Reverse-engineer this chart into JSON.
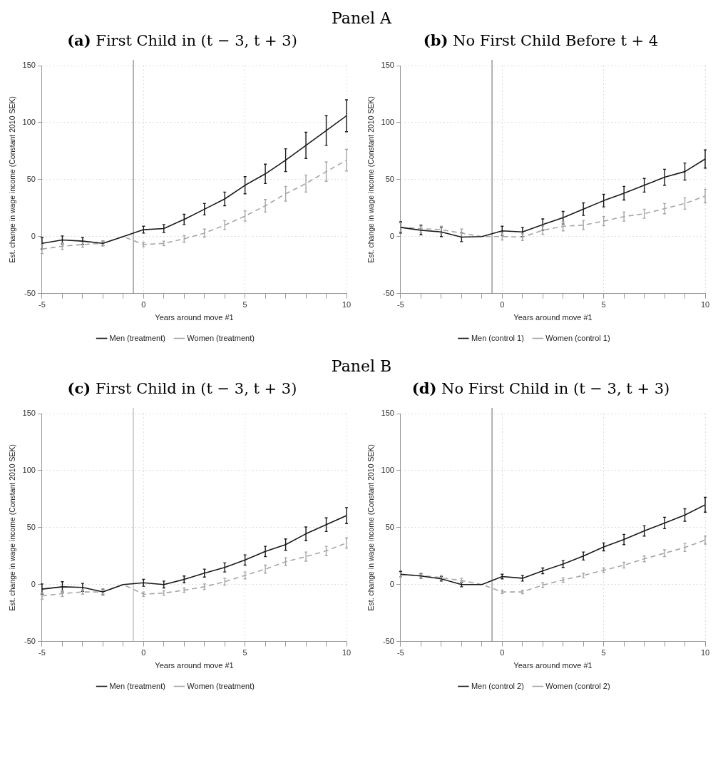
{
  "chart_data": [
    {
      "type": "line",
      "annotations": [
        "Panel A"
      ],
      "title": "(a) First Child in (t − 3, t + 3)",
      "xlabel": "Years around move #1",
      "ylabel": "Est. change in wage income (Constant 2010 SEK)",
      "x": [
        -5,
        -4,
        -3,
        -2,
        -1,
        0,
        1,
        2,
        3,
        4,
        5,
        6,
        7,
        8,
        9,
        10
      ],
      "series": [
        {
          "name": "Men (treatment)",
          "color": "#1a1a1a",
          "line_style": "solid",
          "values": [
            -6,
            -3,
            -4,
            -6,
            0,
            6,
            7,
            15,
            24,
            33,
            45,
            55,
            67,
            80,
            93,
            106
          ],
          "errors": [
            5,
            3.5,
            3,
            2,
            null,
            3,
            3.5,
            4.5,
            5,
            6,
            7.5,
            8.5,
            10,
            11.5,
            13,
            14
          ]
        },
        {
          "name": "Women (treatment)",
          "color": "#a6a6a6",
          "line_style": "dashed",
          "values": [
            -11,
            -8.5,
            -7,
            -6,
            0,
            -7,
            -6,
            -2,
            3,
            10,
            18,
            27,
            37.5,
            46.5,
            57,
            67
          ],
          "errors": [
            4,
            3,
            2.5,
            2,
            null,
            2,
            2,
            3,
            3.5,
            4,
            4.5,
            5.5,
            6.5,
            7.5,
            8.5,
            9.5
          ]
        }
      ],
      "xlim": [
        -5,
        10
      ],
      "xticks": [
        -5,
        {
          "value": -4,
          "label": null
        },
        {
          "value": -3,
          "label": null
        },
        {
          "value": -2,
          "label": null
        },
        {
          "value": -1,
          "label": null
        },
        0,
        {
          "value": 1,
          "label": null
        },
        {
          "value": 2,
          "label": null
        },
        {
          "value": 3,
          "label": null
        },
        {
          "value": 4,
          "label": null
        },
        5,
        {
          "value": 6,
          "label": null
        },
        {
          "value": 7,
          "label": null
        },
        {
          "value": 8,
          "label": null
        },
        {
          "value": 9,
          "label": null
        },
        10
      ],
      "ylim": [
        -50,
        150
      ],
      "yticks": [
        -50,
        0,
        50,
        100,
        150
      ],
      "grid": true,
      "legend": "bottom",
      "ref_lines": [
        {
          "axis": "x",
          "value": -0.5,
          "color": "#808080"
        }
      ]
    },
    {
      "type": "line",
      "title": "(b) No First Child Before t + 4",
      "xlabel": "Years around move #1",
      "ylabel": "Est. change in wage income (Constant 2010 SEK)",
      "x": [
        -5,
        -4,
        -3,
        -2,
        -1,
        0,
        1,
        2,
        3,
        4,
        5,
        6,
        7,
        8,
        9,
        10
      ],
      "series": [
        {
          "name": "Men (control 1)",
          "color": "#1a1a1a",
          "line_style": "solid",
          "values": [
            8,
            5.5,
            4,
            -0.5,
            0,
            5,
            4,
            10.5,
            16.5,
            24,
            31.5,
            38,
            45,
            52,
            57,
            68
          ],
          "errors": [
            5,
            4,
            4,
            4,
            null,
            4,
            4,
            5,
            5.5,
            5.5,
            5.5,
            6,
            6,
            7,
            7.5,
            8
          ]
        },
        {
          "name": "Women (control 1)",
          "color": "#a6a6a6",
          "line_style": "dashed",
          "values": [
            8,
            7,
            6,
            3,
            0,
            0,
            -0.5,
            5.5,
            9,
            10,
            13.5,
            17.5,
            20,
            24.5,
            29,
            35.5
          ],
          "errors": [
            4,
            3.5,
            3,
            3.5,
            null,
            3,
            3,
            3.5,
            4,
            4,
            4,
            4,
            4,
            4.5,
            5,
            6
          ]
        }
      ],
      "xlim": [
        -5,
        10
      ],
      "xticks": [
        -5,
        {
          "value": -4,
          "label": null
        },
        {
          "value": -3,
          "label": null
        },
        {
          "value": -2,
          "label": null
        },
        {
          "value": -1,
          "label": null
        },
        0,
        {
          "value": 1,
          "label": null
        },
        {
          "value": 2,
          "label": null
        },
        {
          "value": 3,
          "label": null
        },
        {
          "value": 4,
          "label": null
        },
        5,
        {
          "value": 6,
          "label": null
        },
        {
          "value": 7,
          "label": null
        },
        {
          "value": 8,
          "label": null
        },
        {
          "value": 9,
          "label": null
        },
        10
      ],
      "ylim": [
        -50,
        150
      ],
      "yticks": [
        -50,
        0,
        50,
        100,
        150
      ],
      "grid": true,
      "legend": "bottom",
      "ref_lines": [
        {
          "axis": "x",
          "value": -0.5,
          "color": "#808080"
        }
      ]
    },
    {
      "type": "line",
      "annotations": [
        "Panel B"
      ],
      "title": "(c) First Child in (t − 3, t + 3)",
      "xlabel": "Years around move #1",
      "ylabel": "Est. change in wage income (Constant 2010 SEK)",
      "x": [
        -5,
        -4,
        -3,
        -2,
        -1,
        0,
        1,
        2,
        3,
        4,
        5,
        6,
        7,
        8,
        9,
        10
      ],
      "series": [
        {
          "name": "Men (treatment)",
          "color": "#1a1a1a",
          "line_style": "solid",
          "values": [
            -4,
            -2,
            -2.5,
            -6.5,
            0,
            1.5,
            0,
            4.5,
            10,
            15,
            21.5,
            29,
            35,
            44.5,
            52.5,
            60.5
          ],
          "errors": [
            4.5,
            4.5,
            3.5,
            2.5,
            null,
            3,
            3,
            3,
            3.5,
            4,
            4.5,
            4.5,
            5,
            6,
            6,
            7
          ]
        },
        {
          "name": "Women (treatment)",
          "color": "#a6a6a6",
          "line_style": "dashed",
          "values": [
            -10,
            -8,
            -6.5,
            -6.5,
            0,
            -8.5,
            -7.5,
            -5,
            -2,
            2.5,
            8,
            13.5,
            20,
            24.5,
            29.5,
            36.5
          ],
          "errors": [
            3,
            2.5,
            2,
            2,
            null,
            2,
            2,
            2,
            2.5,
            3,
            3,
            3.5,
            3.5,
            4,
            4,
            4.5
          ]
        }
      ],
      "xlim": [
        -5,
        10
      ],
      "xticks": [
        -5,
        {
          "value": -4,
          "label": null
        },
        {
          "value": -3,
          "label": null
        },
        {
          "value": -2,
          "label": null
        },
        {
          "value": -1,
          "label": null
        },
        0,
        {
          "value": 1,
          "label": null
        },
        {
          "value": 2,
          "label": null
        },
        {
          "value": 3,
          "label": null
        },
        {
          "value": 4,
          "label": null
        },
        5,
        {
          "value": 6,
          "label": null
        },
        {
          "value": 7,
          "label": null
        },
        {
          "value": 8,
          "label": null
        },
        {
          "value": 9,
          "label": null
        },
        10
      ],
      "ylim": [
        -50,
        150
      ],
      "yticks": [
        -50,
        0,
        50,
        100,
        150
      ],
      "grid": true,
      "legend": "bottom",
      "ref_lines": [
        {
          "axis": "x",
          "value": -0.5,
          "color": "#b3b3b3"
        }
      ]
    },
    {
      "type": "line",
      "title": "(d) No First Child in (t − 3, t + 3)",
      "xlabel": "Years around move #1",
      "ylabel": "Est. change in wage income (Constant 2010 SEK)",
      "x": [
        -5,
        -4,
        -3,
        -2,
        -1,
        0,
        1,
        2,
        3,
        4,
        5,
        6,
        7,
        8,
        9,
        10
      ],
      "series": [
        {
          "name": "Men (control 2)",
          "color": "#1a1a1a",
          "line_style": "solid",
          "values": [
            9,
            7.5,
            5,
            0,
            0,
            7,
            5.5,
            12,
            18,
            25,
            33,
            39.5,
            47,
            54,
            61,
            70
          ],
          "errors": [
            2.5,
            2,
            2,
            2,
            null,
            2,
            2.5,
            2.5,
            3,
            3.5,
            3.5,
            4.5,
            4.5,
            5,
            5.5,
            6.5
          ]
        },
        {
          "name": "Women (control 2)",
          "color": "#a6a6a6",
          "line_style": "dashed",
          "values": [
            8.5,
            8,
            6,
            3.5,
            0,
            -6.5,
            -6.5,
            -0.5,
            4,
            8,
            12.5,
            17,
            22.5,
            27.5,
            32.5,
            39
          ],
          "errors": [
            2,
            2,
            2,
            2,
            null,
            1.5,
            1.5,
            2,
            2,
            2,
            2,
            2.5,
            2.5,
            3,
            3.5,
            3.5
          ]
        }
      ],
      "xlim": [
        -5,
        10
      ],
      "xticks": [
        -5,
        {
          "value": -4,
          "label": null
        },
        {
          "value": -3,
          "label": null
        },
        {
          "value": -2,
          "label": null
        },
        {
          "value": -1,
          "label": null
        },
        0,
        {
          "value": 1,
          "label": null
        },
        {
          "value": 2,
          "label": null
        },
        {
          "value": 3,
          "label": null
        },
        {
          "value": 4,
          "label": null
        },
        5,
        {
          "value": 6,
          "label": null
        },
        {
          "value": 7,
          "label": null
        },
        {
          "value": 8,
          "label": null
        },
        {
          "value": 9,
          "label": null
        },
        10
      ],
      "ylim": [
        -50,
        150
      ],
      "yticks": [
        -50,
        0,
        50,
        100,
        150
      ],
      "grid": true,
      "legend": "bottom",
      "ref_lines": [
        {
          "axis": "x",
          "value": -0.5,
          "color": "#808080"
        }
      ]
    }
  ]
}
